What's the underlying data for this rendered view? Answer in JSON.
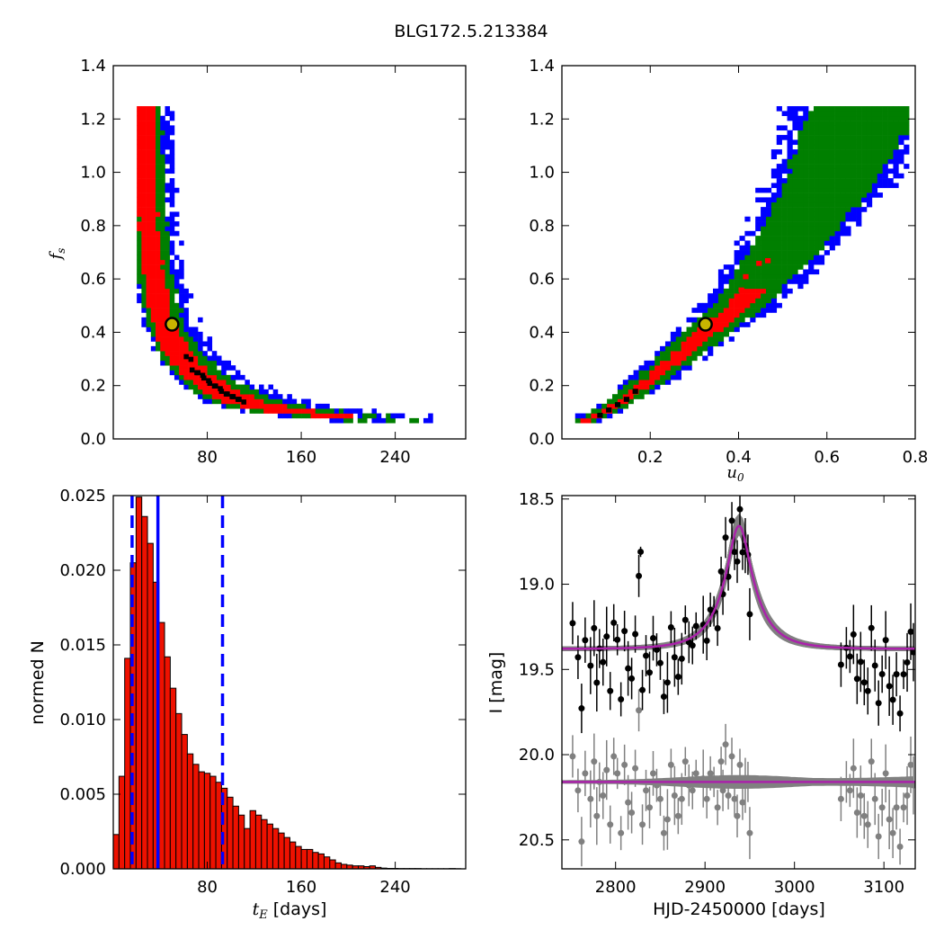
{
  "figure_title": "BLG172.5.213384",
  "colors": {
    "blue": "#0000ff",
    "green": "#007f00",
    "red": "#ff0000",
    "black": "#000000",
    "hist_fill": "#ee1100",
    "model": "#aa22aa",
    "grey": "#808080",
    "marker_fill": "#c8b400"
  },
  "chart_data": [
    {
      "id": "fs_vs_tE",
      "type": "heatmap",
      "title": "",
      "xlabel": "",
      "ylabel": "f_s",
      "xlim": [
        0,
        300
      ],
      "ylim": [
        0,
        1.4
      ],
      "xticks": [
        80,
        160,
        240
      ],
      "yticks": [
        0.0,
        0.2,
        0.4,
        0.6,
        0.8,
        1.0,
        1.2,
        1.4
      ],
      "ytick_labels": [
        "0.0",
        "0.2",
        "0.4",
        "0.6",
        "0.8",
        "1.0",
        "1.2",
        "1.4"
      ],
      "levels": [
        "blue",
        "green",
        "red",
        "black"
      ],
      "marker": {
        "x": 50,
        "y": 0.43
      },
      "band_center": [
        [
          25,
          1.23
        ],
        [
          26,
          1.0
        ],
        [
          28,
          0.8
        ],
        [
          32,
          0.6
        ],
        [
          40,
          0.43
        ],
        [
          55,
          0.3
        ],
        [
          70,
          0.23
        ],
        [
          90,
          0.17
        ],
        [
          110,
          0.13
        ],
        [
          140,
          0.1
        ],
        [
          180,
          0.08
        ],
        [
          240,
          0.07
        ]
      ],
      "band_width_tE": [
        [
          1.2,
          14
        ],
        [
          0.6,
          16
        ],
        [
          0.4,
          18
        ],
        [
          0.2,
          25
        ],
        [
          0.1,
          40
        ],
        [
          0.07,
          60
        ]
      ],
      "black_cells": [
        [
          65,
          0.25
        ],
        [
          70,
          0.24
        ],
        [
          75,
          0.22
        ],
        [
          80,
          0.2
        ],
        [
          85,
          0.19
        ],
        [
          90,
          0.17
        ],
        [
          95,
          0.16
        ],
        [
          100,
          0.15
        ],
        [
          105,
          0.14
        ],
        [
          60,
          0.3
        ]
      ]
    },
    {
      "id": "fs_vs_u0",
      "type": "heatmap",
      "title": "",
      "xlabel": "u_0",
      "ylabel": "",
      "xlim": [
        0.0,
        0.8
      ],
      "ylim": [
        0,
        1.4
      ],
      "xticks": [
        0.2,
        0.4,
        0.6,
        0.8
      ],
      "xtick_labels": [
        "0.2",
        "0.4",
        "0.6",
        "0.8"
      ],
      "yticks": [
        0.0,
        0.2,
        0.4,
        0.6,
        0.8,
        1.0,
        1.2,
        1.4
      ],
      "ytick_labels": [
        "0.0",
        "0.2",
        "0.4",
        "0.6",
        "0.8",
        "1.0",
        "1.2",
        "1.4"
      ],
      "marker": {
        "x": 0.325,
        "y": 0.43
      },
      "band_center": [
        [
          0.05,
          0.06
        ],
        [
          0.12,
          0.12
        ],
        [
          0.2,
          0.22
        ],
        [
          0.3,
          0.36
        ],
        [
          0.4,
          0.5
        ],
        [
          0.5,
          0.7
        ],
        [
          0.6,
          0.95
        ],
        [
          0.68,
          1.23
        ]
      ],
      "black_cells": [
        [
          0.08,
          0.08
        ],
        [
          0.1,
          0.1
        ],
        [
          0.12,
          0.12
        ],
        [
          0.14,
          0.14
        ],
        [
          0.16,
          0.17
        ]
      ]
    },
    {
      "id": "tE_hist",
      "type": "bar",
      "title": "",
      "xlabel": "t_E  [days]",
      "ylabel": "normed N",
      "xlim": [
        0,
        300
      ],
      "ylim": [
        0,
        0.025
      ],
      "xticks": [
        80,
        160,
        240
      ],
      "yticks": [
        0.0,
        0.005,
        0.01,
        0.015,
        0.02,
        0.025
      ],
      "ytick_labels": [
        "0.000",
        "0.005",
        "0.010",
        "0.015",
        "0.020",
        "0.025"
      ],
      "bin_width": 4.85,
      "bin_start": 0,
      "values": [
        0.0023,
        0.0062,
        0.0141,
        0.0205,
        0.0249,
        0.0236,
        0.0218,
        0.0192,
        0.0165,
        0.0142,
        0.0121,
        0.0104,
        0.009,
        0.0077,
        0.007,
        0.0065,
        0.0064,
        0.0062,
        0.0058,
        0.0054,
        0.0048,
        0.0042,
        0.0036,
        0.0027,
        0.0039,
        0.0036,
        0.0033,
        0.003,
        0.0027,
        0.0024,
        0.0021,
        0.0018,
        0.0015,
        0.0013,
        0.0013,
        0.0011,
        0.001,
        0.0008,
        0.0006,
        0.0004,
        0.0003,
        0.00025,
        0.0002,
        0.0002,
        0.00015,
        0.0002,
        0.0001,
        5e-05,
        3e-05,
        3e-05,
        2e-05,
        2e-05,
        2e-05,
        2e-05,
        1e-05,
        1e-05,
        1e-05,
        1e-05,
        1e-05,
        2e-05,
        1e-05
      ],
      "vlines": [
        {
          "x": 38,
          "style": "solid"
        },
        {
          "x": 16,
          "style": "dashed"
        },
        {
          "x": 93,
          "style": "dashed"
        }
      ]
    },
    {
      "id": "lightcurve",
      "type": "scatter",
      "title": "",
      "xlabel": "HJD-2450000 [days]",
      "ylabel": "I [mag]",
      "xlim": [
        2740,
        3135
      ],
      "ylim": [
        20.67,
        18.48
      ],
      "xticks": [
        2800,
        2900,
        3000,
        3100
      ],
      "yticks": [
        18.5,
        19.0,
        19.5,
        20.0,
        20.5
      ],
      "ytick_labels": [
        "18.5",
        "19.0",
        "19.5",
        "20.0",
        "20.5"
      ],
      "model": {
        "t0": 2938,
        "tE": 38,
        "u0": 0.325,
        "fs": 0.43,
        "baseline": 19.38,
        "resid_baseline": 20.16
      },
      "obs_times": [
        2752,
        2758,
        2762,
        2766,
        2772,
        2776,
        2779,
        2782,
        2786,
        2790,
        2794,
        2798,
        2802,
        2806,
        2810,
        2814,
        2818,
        2822,
        2826,
        2830,
        2834,
        2838,
        2842,
        2846,
        2850,
        2854,
        2858,
        2862,
        2866,
        2870,
        2874,
        2878,
        2882,
        2886,
        2890,
        2898,
        2902,
        2906,
        2910,
        2914,
        2918,
        2920,
        2923,
        2926,
        2930,
        2933,
        2936,
        2939,
        2942,
        2945,
        2948,
        2950,
        3052,
        3058,
        3062,
        3066,
        3070,
        3074,
        3078,
        3082,
        3086,
        3090,
        3094,
        3098,
        3102,
        3106,
        3110,
        3114,
        3118,
        3122,
        3126,
        3130,
        3133
      ],
      "residual_offsets": [
        -0.15,
        0.05,
        0.35,
        -0.05,
        0.1,
        -0.12,
        0.2,
        0.0,
        0.08,
        -0.07,
        0.25,
        -0.15,
        -0.05,
        0.3,
        -0.1,
        0.12,
        0.18,
        -0.08,
        -0.42,
        0.25,
        0.05,
        0.15,
        -0.05,
        0.02,
        0.1,
        0.3,
        0.22,
        -0.1,
        0.08,
        0.2,
        0.1,
        -0.12,
        0.02,
        0.05,
        -0.05,
        -0.02,
        0.1,
        -0.05,
        0.0,
        0.15,
        -0.12,
        0.05,
        -0.22,
        0.08,
        -0.15,
        0.1,
        0.2,
        -0.1,
        0.12,
        0.02,
        0.0,
        0.3,
        0.1,
        0.0,
        0.05,
        -0.08,
        0.18,
        0.08,
        0.2,
        0.25,
        -0.12,
        0.1,
        0.32,
        0.15,
        -0.05,
        0.22,
        0.3,
        0.15,
        0.38,
        0.15,
        0.08,
        -0.1,
        0.02
      ],
      "extra_points": [
        {
          "t": 2828,
          "mag": 18.81
        }
      ]
    }
  ]
}
